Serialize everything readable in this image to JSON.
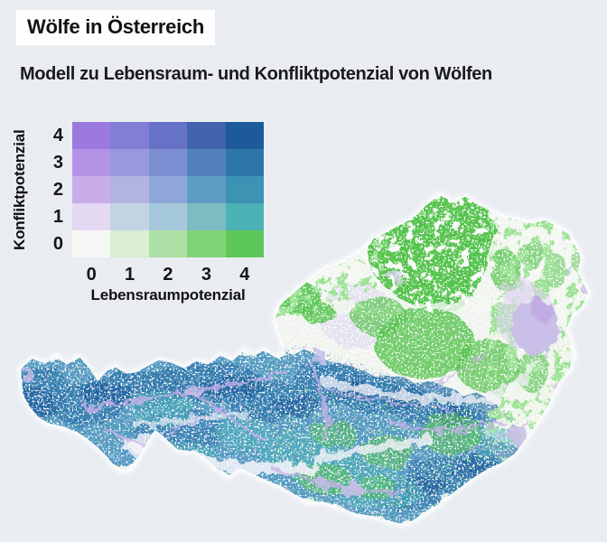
{
  "page": {
    "background_color": "#e9edf2"
  },
  "header": {
    "title": "Wölfe in Österreich",
    "title_background": "#ffffff",
    "subtitle": "Modell zu Lebensraum- und Konfliktpotenzial von Wölfen",
    "text_color": "#121212"
  },
  "legend": {
    "y_axis_label": "Konfliktpotenzial",
    "x_axis_label": "Lebensraumpotenzial",
    "y_ticks": [
      "4",
      "3",
      "2",
      "1",
      "0"
    ],
    "x_ticks": [
      "0",
      "1",
      "2",
      "3",
      "4"
    ],
    "matrix": [
      {
        "konfliktpotenzial": 4,
        "colors": [
          "#9b79df",
          "#837dd6",
          "#6672c6",
          "#4164ad",
          "#1d5a99"
        ]
      },
      {
        "konfliktpotenzial": 3,
        "colors": [
          "#b493e6",
          "#9b97dc",
          "#7b8ed1",
          "#5381bb",
          "#2e76a9"
        ]
      },
      {
        "konfliktpotenzial": 2,
        "colors": [
          "#c9ade9",
          "#b3b3e2",
          "#8fa7d8",
          "#5f9dc4",
          "#3e92b4"
        ]
      },
      {
        "konfliktpotenzial": 1,
        "colors": [
          "#e3d9f3",
          "#c4d3e3",
          "#a5c9da",
          "#7dbdc1",
          "#4bb2b5"
        ]
      },
      {
        "konfliktpotenzial": 0,
        "colors": [
          "#f6f7f5",
          "#d9eed3",
          "#aee0a5",
          "#81d378",
          "#5ec75a"
        ]
      }
    ]
  },
  "map": {
    "region": "Österreich",
    "palette": {
      "base": "#f0f4ee",
      "alpine": "#539ac0",
      "alpine_dark": "#2f77aa",
      "alpine_deep": "#1d5a99",
      "teal": "#49b0b4",
      "green": "#55c34e",
      "green_pale": "#d9eed3",
      "pale": "#f3f6f0",
      "pale_se": "#eff4ea",
      "lavender": "#c8bde8",
      "lavender_deep": "#bfa9e3",
      "lavender_soft": "#ded5f0",
      "ridge_white": "#f3f2f8",
      "vein": "#c3aee8",
      "halo": "#ffffff"
    }
  }
}
